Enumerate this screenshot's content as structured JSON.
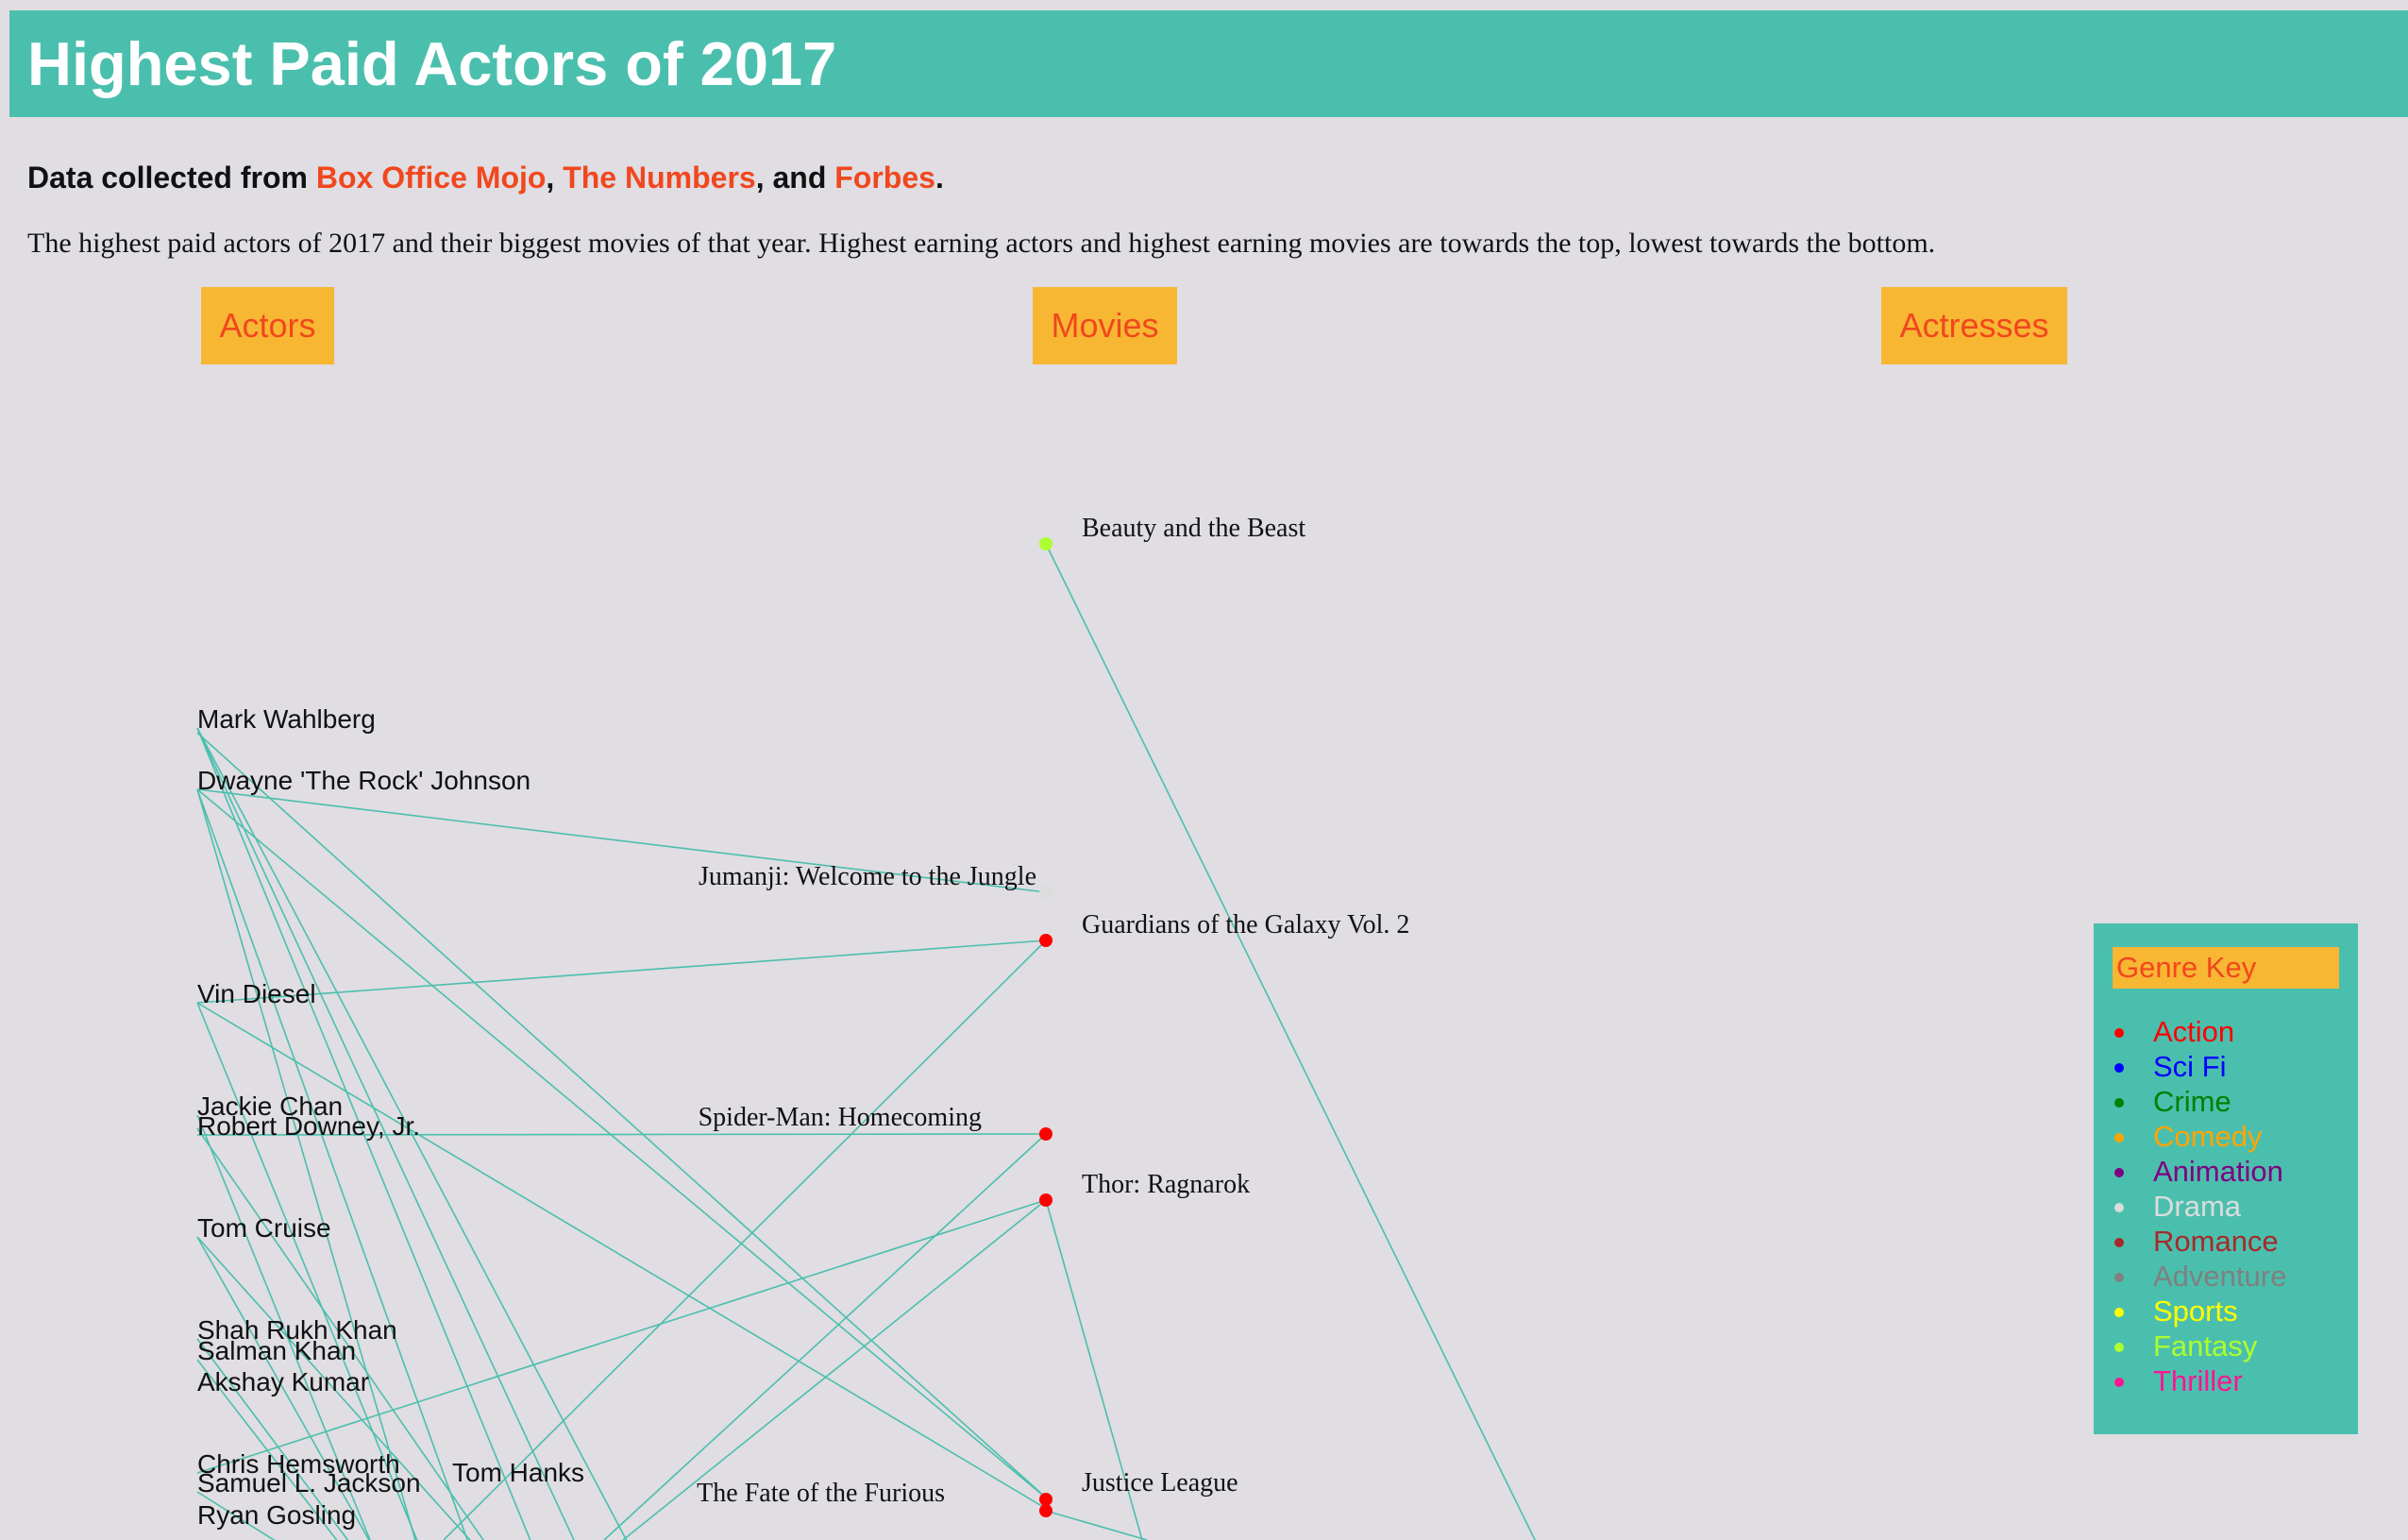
{
  "header": {
    "title": "Highest Paid Actors of 2017"
  },
  "sources": {
    "prefix": "Data collected from ",
    "links": [
      "Box Office Mojo",
      "The Numbers",
      "Forbes"
    ],
    "sep1": ", ",
    "sep2": ", and ",
    "suffix": "."
  },
  "description": "The highest paid actors of 2017 and their biggest movies of that year. Highest earning actors and highest earning movies are towards the top, lowest towards the bottom.",
  "columns": {
    "actors": "Actors",
    "movies": "Movies",
    "actresses": "Actresses"
  },
  "colors": {
    "header_bg": "#4bbfad",
    "accent": "#f1471d",
    "button_bg": "#f7b733",
    "link_line": "#4bbfad"
  },
  "actors": [
    "Mark Wahlberg",
    "Dwayne 'The Rock' Johnson",
    "Vin Diesel",
    "Jackie Chan",
    "Robert Downey, Jr.",
    "Tom Cruise",
    "Shah Rukh Khan",
    "Salman Khan",
    "Akshay Kumar",
    "Chris Hemsworth",
    "Samuel L. Jackson",
    "Tom Hanks",
    "Ryan Gosling"
  ],
  "movies": [
    {
      "title": "Beauty and the Beast",
      "genre": "Fantasy"
    },
    {
      "title": "Jumanji: Welcome to the Jungle",
      "genre": "Drama"
    },
    {
      "title": "Guardians of the Galaxy Vol. 2",
      "genre": "Action"
    },
    {
      "title": "Spider-Man: Homecoming",
      "genre": "Action"
    },
    {
      "title": "Thor: Ragnarok",
      "genre": "Action"
    },
    {
      "title": "Justice League",
      "genre": "Action"
    },
    {
      "title": "The Fate of the Furious",
      "genre": "Action"
    }
  ],
  "genre_key": {
    "title": "Genre Key",
    "items": [
      {
        "label": "Action",
        "color": "#ff0000"
      },
      {
        "label": "Sci Fi",
        "color": "#0000ff"
      },
      {
        "label": "Crime",
        "color": "#008000"
      },
      {
        "label": "Comedy",
        "color": "#ffa500"
      },
      {
        "label": "Animation",
        "color": "#800080"
      },
      {
        "label": "Drama",
        "color": "#dcdcdc"
      },
      {
        "label": "Romance",
        "color": "#a52a2a"
      },
      {
        "label": "Adventure",
        "color": "#808080"
      },
      {
        "label": "Sports",
        "color": "#ffff00"
      },
      {
        "label": "Fantasy",
        "color": "#adff2f"
      },
      {
        "label": "Thriller",
        "color": "#ff1493"
      }
    ]
  }
}
